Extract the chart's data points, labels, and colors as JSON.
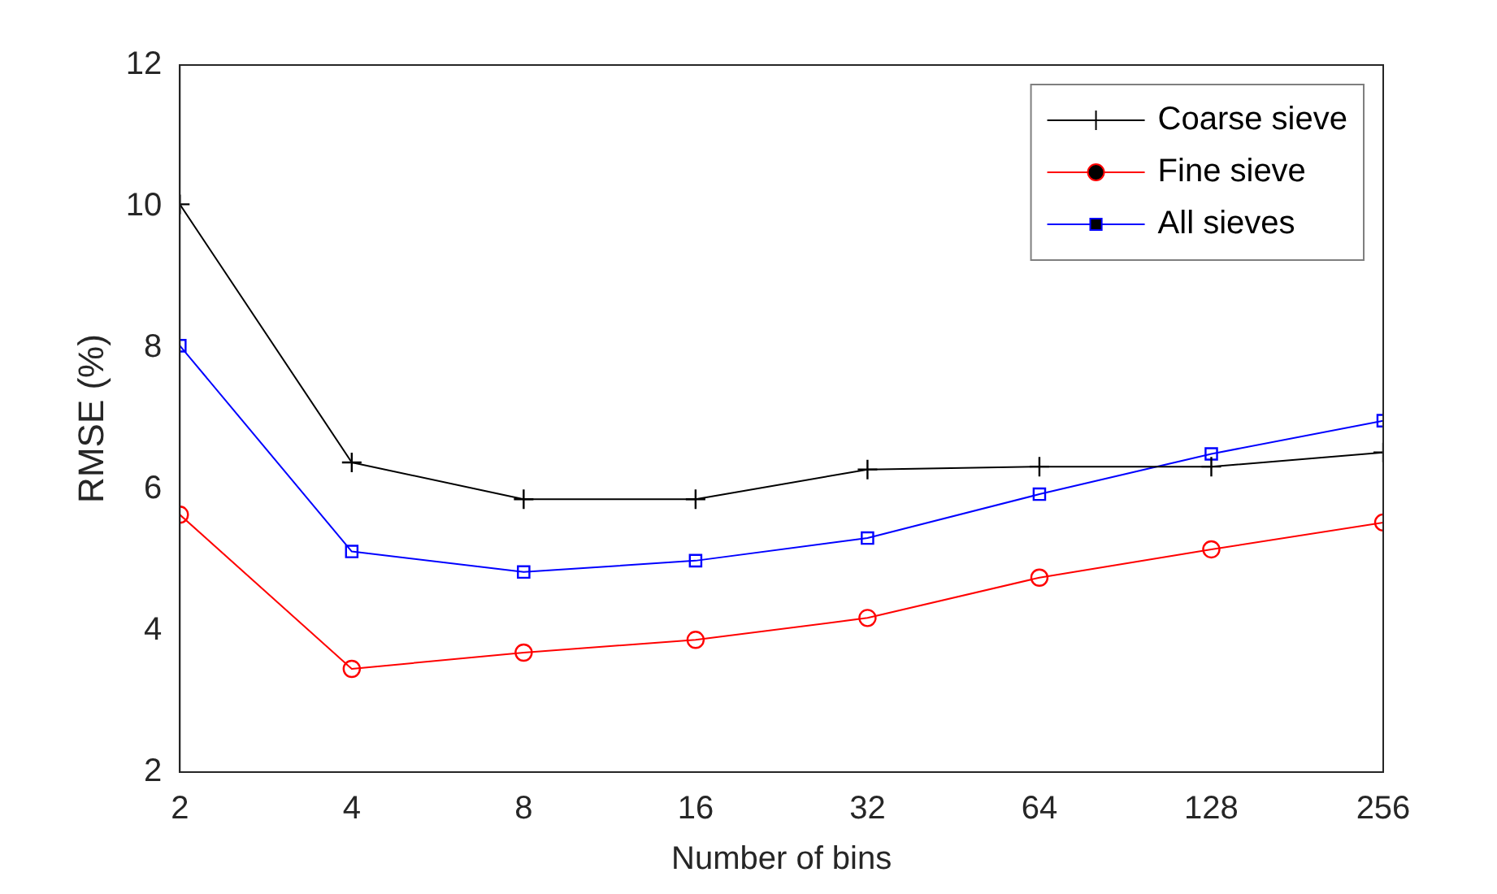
{
  "chart_data": {
    "type": "line",
    "xlabel": "Number of bins",
    "ylabel": "RMSE (%)",
    "x": [
      2,
      4,
      8,
      16,
      32,
      64,
      128,
      256
    ],
    "log": "x",
    "xlim": [
      2,
      256
    ],
    "xticks": [
      2,
      4,
      8,
      16,
      32,
      64,
      128,
      256
    ],
    "ylim": [
      2,
      12
    ],
    "yticks": [
      2,
      4,
      6,
      8,
      10,
      12
    ],
    "grid": false,
    "legend": "top right",
    "line_style": "solid",
    "series": [
      {
        "name": "Coarse sieve",
        "color": "#000000",
        "marker": "cross",
        "values": [
          10.03,
          6.38,
          5.86,
          5.86,
          6.28,
          6.32,
          6.32,
          6.52
        ]
      },
      {
        "name": "Fine sieve",
        "color": "#ff0000",
        "marker": "circle",
        "values": [
          5.64,
          3.46,
          3.69,
          3.87,
          4.18,
          4.75,
          5.15,
          5.53
        ]
      },
      {
        "name": "All sieves",
        "color": "#0000ff",
        "marker": "square",
        "values": [
          8.03,
          5.12,
          4.83,
          4.99,
          5.31,
          5.93,
          6.5,
          6.97
        ]
      }
    ]
  }
}
